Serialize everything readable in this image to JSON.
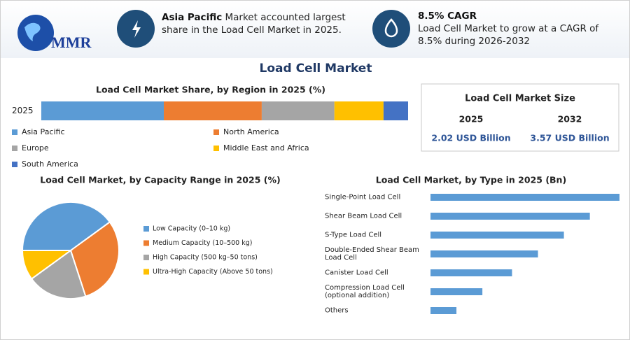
{
  "header": {
    "logo": "MMR",
    "highlights": [
      {
        "title": "Asia Pacific",
        "text": "Market accounted largest share in the Load Cell Market in 2025."
      },
      {
        "title": "8.5% CAGR",
        "text": "Load Cell Market to grow at a CAGR of 8.5% during 2026-2032"
      }
    ]
  },
  "title": "Load Cell Market",
  "market_size": {
    "title": "Load Cell Market Size",
    "columns": [
      "2025",
      "2032"
    ],
    "values": [
      "2.02 USD Billion",
      "3.57 USD Billion"
    ]
  },
  "chart_data": [
    {
      "type": "stacked_bar",
      "title": "Load Cell Market Share, by Region in 2025 (%)",
      "categories": [
        "2025"
      ],
      "series": [
        {
          "name": "Asia Pacific",
          "color": "#5b9bd5",
          "values": [
            33.4
          ]
        },
        {
          "name": "North America",
          "color": "#ed7d31",
          "values": [
            26.7
          ]
        },
        {
          "name": "Europe",
          "color": "#a5a5a5",
          "values": [
            19.8
          ]
        },
        {
          "name": "Middle East and Africa",
          "color": "#ffc000",
          "values": [
            13.4
          ]
        },
        {
          "name": "South America",
          "color": "#4472c4",
          "values": [
            6.7
          ]
        }
      ]
    },
    {
      "type": "pie",
      "title": "Load Cell Market, by Capacity Range in 2025 (%)",
      "categories": [
        "Low Capacity (0–10 kg)",
        "Medium Capacity (10–500 kg)",
        "High Capacity (500 kg–50 tons)",
        "Ultra-High Capacity (Above 50 tons)"
      ],
      "values": [
        40,
        30,
        20,
        10
      ],
      "colors": [
        "#5b9bd5",
        "#ed7d31",
        "#a5a5a5",
        "#ffc000"
      ]
    },
    {
      "type": "hbar",
      "title": "Load Cell Market, by Type in 2025 (Bn)",
      "categories": [
        "Single-Point Load Cell",
        "Shear Beam Load Cell",
        "S-Type Load Cell",
        "Double-Ended Shear Beam Load Cell",
        "Canister Load Cell",
        "Compression Load Cell (optional addition)",
        "Others"
      ],
      "values": [
        0.51,
        0.43,
        0.36,
        0.29,
        0.22,
        0.14,
        0.07
      ],
      "color": "#5b9bd5"
    }
  ]
}
